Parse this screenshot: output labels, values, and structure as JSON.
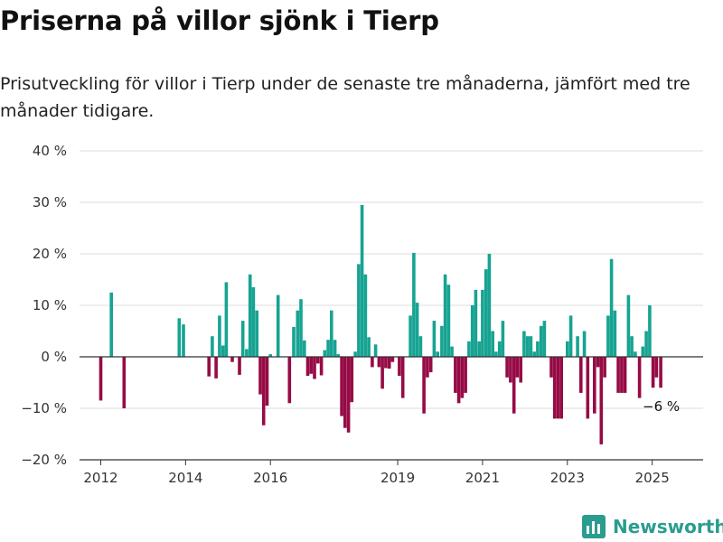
{
  "header": {
    "title": "Priserna på villor sjönk i Tierp",
    "subtitle": "Prisutveckling för villor i Tierp under de senaste tre månaderna, jämfört med tre månader tidigare."
  },
  "brand": {
    "name": "Newsworthy",
    "icon": "bar-chart-logo-icon"
  },
  "colors": {
    "positive": "#17a392",
    "negative": "#960b45",
    "grid": "#dddddd",
    "axis": "#333333"
  },
  "chart_data": {
    "type": "bar",
    "x_unit": "year",
    "y_unit": "%",
    "ylim": [
      -20,
      40
    ],
    "xlim": [
      2011.5,
      2026.2
    ],
    "y_ticks": [
      {
        "value": 40,
        "label": "40 %"
      },
      {
        "value": 30,
        "label": "30 %"
      },
      {
        "value": 20,
        "label": "20 %"
      },
      {
        "value": 10,
        "label": "10 %"
      },
      {
        "value": 0,
        "label": "0 %"
      },
      {
        "value": -10,
        "label": "−10 %"
      },
      {
        "value": -20,
        "label": "−20 %"
      }
    ],
    "x_ticks": [
      {
        "value": 2012,
        "label": "2012"
      },
      {
        "value": 2014,
        "label": "2014"
      },
      {
        "value": 2016,
        "label": "2016"
      },
      {
        "value": 2019,
        "label": "2019"
      },
      {
        "value": 2021,
        "label": "2021"
      },
      {
        "value": 2023,
        "label": "2023"
      },
      {
        "value": 2025,
        "label": "2025"
      }
    ],
    "grid": true,
    "annotation": {
      "x": 2025.2,
      "y": -6,
      "label": "−6 %"
    },
    "points": [
      {
        "x": 2012.0,
        "y": -8.5
      },
      {
        "x": 2012.25,
        "y": 12.5
      },
      {
        "x": 2012.55,
        "y": -10
      },
      {
        "x": 2013.85,
        "y": 7.5
      },
      {
        "x": 2013.95,
        "y": 6.3
      },
      {
        "x": 2014.55,
        "y": -3.8
      },
      {
        "x": 2014.63,
        "y": 4.0
      },
      {
        "x": 2014.72,
        "y": -4.2
      },
      {
        "x": 2014.8,
        "y": 8.0
      },
      {
        "x": 2014.88,
        "y": 2.2
      },
      {
        "x": 2014.96,
        "y": 14.5
      },
      {
        "x": 2015.1,
        "y": -1.0
      },
      {
        "x": 2015.27,
        "y": -3.5
      },
      {
        "x": 2015.35,
        "y": 7.0
      },
      {
        "x": 2015.44,
        "y": 1.5
      },
      {
        "x": 2015.52,
        "y": 16.0
      },
      {
        "x": 2015.6,
        "y": 13.5
      },
      {
        "x": 2015.68,
        "y": 9.0
      },
      {
        "x": 2015.76,
        "y": -7.3
      },
      {
        "x": 2015.84,
        "y": -13.3
      },
      {
        "x": 2015.92,
        "y": -9.5
      },
      {
        "x": 2016.0,
        "y": 0.5
      },
      {
        "x": 2016.18,
        "y": 12.0
      },
      {
        "x": 2016.45,
        "y": -9.0
      },
      {
        "x": 2016.55,
        "y": 5.8
      },
      {
        "x": 2016.64,
        "y": 9.0
      },
      {
        "x": 2016.72,
        "y": 11.2
      },
      {
        "x": 2016.8,
        "y": 3.2
      },
      {
        "x": 2016.88,
        "y": -3.7
      },
      {
        "x": 2016.96,
        "y": -3.3
      },
      {
        "x": 2017.04,
        "y": -4.3
      },
      {
        "x": 2017.12,
        "y": -1.3
      },
      {
        "x": 2017.2,
        "y": -3.6
      },
      {
        "x": 2017.28,
        "y": 1.3
      },
      {
        "x": 2017.36,
        "y": 3.3
      },
      {
        "x": 2017.44,
        "y": 9.0
      },
      {
        "x": 2017.52,
        "y": 3.3
      },
      {
        "x": 2017.6,
        "y": 0.5
      },
      {
        "x": 2017.68,
        "y": -11.5
      },
      {
        "x": 2017.76,
        "y": -13.8
      },
      {
        "x": 2017.84,
        "y": -14.7
      },
      {
        "x": 2017.92,
        "y": -8.8
      },
      {
        "x": 2018.0,
        "y": 1.0
      },
      {
        "x": 2018.08,
        "y": 18.0
      },
      {
        "x": 2018.16,
        "y": 29.5
      },
      {
        "x": 2018.24,
        "y": 16.0
      },
      {
        "x": 2018.32,
        "y": 3.8
      },
      {
        "x": 2018.4,
        "y": -2.0
      },
      {
        "x": 2018.48,
        "y": 2.4
      },
      {
        "x": 2018.56,
        "y": -2.0
      },
      {
        "x": 2018.64,
        "y": -6.2
      },
      {
        "x": 2018.72,
        "y": -2.2
      },
      {
        "x": 2018.8,
        "y": -2.3
      },
      {
        "x": 2018.88,
        "y": -1.0
      },
      {
        "x": 2019.04,
        "y": -3.7
      },
      {
        "x": 2019.12,
        "y": -8.0
      },
      {
        "x": 2019.3,
        "y": 8.0
      },
      {
        "x": 2019.38,
        "y": 20.2
      },
      {
        "x": 2019.46,
        "y": 10.5
      },
      {
        "x": 2019.54,
        "y": 4.0
      },
      {
        "x": 2019.62,
        "y": -11.0
      },
      {
        "x": 2019.7,
        "y": -4.0
      },
      {
        "x": 2019.78,
        "y": -3.0
      },
      {
        "x": 2019.86,
        "y": 7.0
      },
      {
        "x": 2019.94,
        "y": 1.0
      },
      {
        "x": 2020.04,
        "y": 6.0
      },
      {
        "x": 2020.12,
        "y": 16.0
      },
      {
        "x": 2020.2,
        "y": 14.0
      },
      {
        "x": 2020.28,
        "y": 2.0
      },
      {
        "x": 2020.36,
        "y": -7.0
      },
      {
        "x": 2020.44,
        "y": -9.0
      },
      {
        "x": 2020.52,
        "y": -8.0
      },
      {
        "x": 2020.6,
        "y": -7.0
      },
      {
        "x": 2020.68,
        "y": 3.0
      },
      {
        "x": 2020.76,
        "y": 10.0
      },
      {
        "x": 2020.84,
        "y": 13.0
      },
      {
        "x": 2020.92,
        "y": 3.0
      },
      {
        "x": 2021.0,
        "y": 13.0
      },
      {
        "x": 2021.08,
        "y": 17.0
      },
      {
        "x": 2021.16,
        "y": 20.0
      },
      {
        "x": 2021.24,
        "y": 5.0
      },
      {
        "x": 2021.32,
        "y": 1.0
      },
      {
        "x": 2021.4,
        "y": 3.0
      },
      {
        "x": 2021.48,
        "y": 7.0
      },
      {
        "x": 2021.58,
        "y": -4.0
      },
      {
        "x": 2021.66,
        "y": -5.0
      },
      {
        "x": 2021.74,
        "y": -11.0
      },
      {
        "x": 2021.82,
        "y": -4.0
      },
      {
        "x": 2021.9,
        "y": -5.0
      },
      {
        "x": 2021.98,
        "y": 5.0
      },
      {
        "x": 2022.06,
        "y": 4.0
      },
      {
        "x": 2022.14,
        "y": 4.0
      },
      {
        "x": 2022.22,
        "y": 1.0
      },
      {
        "x": 2022.3,
        "y": 3.0
      },
      {
        "x": 2022.38,
        "y": 6.0
      },
      {
        "x": 2022.46,
        "y": 7.0
      },
      {
        "x": 2022.62,
        "y": -4.0
      },
      {
        "x": 2022.7,
        "y": -12.0
      },
      {
        "x": 2022.78,
        "y": -12.0
      },
      {
        "x": 2022.86,
        "y": -12.0
      },
      {
        "x": 2023.0,
        "y": 3.0
      },
      {
        "x": 2023.08,
        "y": 8.0
      },
      {
        "x": 2023.24,
        "y": 4.0
      },
      {
        "x": 2023.32,
        "y": -7.0
      },
      {
        "x": 2023.4,
        "y": 5.0
      },
      {
        "x": 2023.48,
        "y": -12.0
      },
      {
        "x": 2023.64,
        "y": -11.0
      },
      {
        "x": 2023.72,
        "y": -2.0
      },
      {
        "x": 2023.8,
        "y": -17.0
      },
      {
        "x": 2023.88,
        "y": -4.0
      },
      {
        "x": 2023.96,
        "y": 8.0
      },
      {
        "x": 2024.04,
        "y": 19.0
      },
      {
        "x": 2024.12,
        "y": 9.0
      },
      {
        "x": 2024.2,
        "y": -7.0
      },
      {
        "x": 2024.28,
        "y": -7.0
      },
      {
        "x": 2024.36,
        "y": -7.0
      },
      {
        "x": 2024.44,
        "y": 12.0
      },
      {
        "x": 2024.52,
        "y": 4.0
      },
      {
        "x": 2024.6,
        "y": 1.0
      },
      {
        "x": 2024.7,
        "y": -8.0
      },
      {
        "x": 2024.78,
        "y": 2.0
      },
      {
        "x": 2024.86,
        "y": 5.0
      },
      {
        "x": 2024.94,
        "y": 10.0
      },
      {
        "x": 2025.02,
        "y": -6.0
      },
      {
        "x": 2025.1,
        "y": -4.0
      },
      {
        "x": 2025.2,
        "y": -6.0
      }
    ]
  }
}
